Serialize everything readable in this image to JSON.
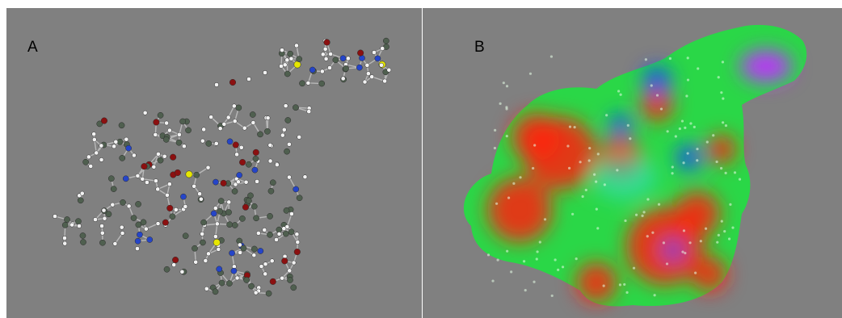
{
  "figure": {
    "panel_a": {
      "label": "A",
      "atom_colors": {
        "carbon": "#4f5f4f",
        "hydrogen": "#f2f2f2",
        "oxygen": "#8b1010",
        "nitrogen": "#2545c8",
        "sulfur": "#e6e600"
      }
    },
    "panel_b": {
      "label": "B",
      "surface_colors": {
        "negative": "#ff2010",
        "neutral": "#20e040",
        "positive": "#1840ff",
        "highly_positive": "#c030ff"
      }
    },
    "background": "#808080"
  }
}
